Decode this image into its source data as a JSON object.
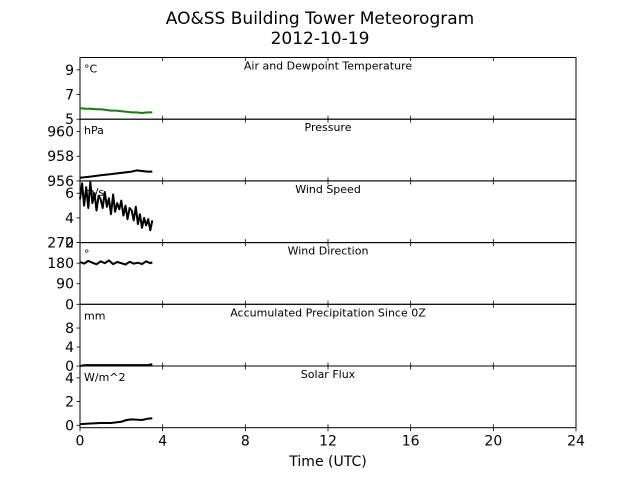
{
  "figure": {
    "title": "AO&SS Building Tower Meteorogram",
    "subtitle": "2012-10-19"
  },
  "chart_data": {
    "type": "line",
    "title": "AO&SS Building Tower Meteorogram",
    "subtitle": "2012-10-19",
    "xlabel": "Time (UTC)",
    "xlim": [
      0,
      24
    ],
    "xticks": [
      0,
      4,
      8,
      12,
      16,
      20,
      24
    ],
    "panels": [
      {
        "title": "Air and Dewpoint Temperature",
        "unit": "°C",
        "ylim": [
          5,
          10
        ],
        "yticks": [
          5,
          7,
          9
        ],
        "series": [
          {
            "color": "#1a7a0e",
            "x": [
              0,
              0.25,
              0.5,
              0.75,
              1.0,
              1.25,
              1.5,
              1.75,
              2.0,
              2.25,
              2.5,
              2.75,
              3.0,
              3.25,
              3.5
            ],
            "y": [
              5.9,
              5.85,
              5.85,
              5.8,
              5.8,
              5.75,
              5.7,
              5.7,
              5.65,
              5.6,
              5.55,
              5.55,
              5.5,
              5.55,
              5.55
            ]
          }
        ]
      },
      {
        "title": "Pressure",
        "unit": "hPa",
        "ylim": [
          956,
          961
        ],
        "yticks": [
          956,
          958,
          960
        ],
        "series": [
          {
            "color": "#000000",
            "x": [
              0,
              0.5,
              1.0,
              1.5,
              2.0,
              2.5,
              2.75,
              3.0,
              3.25,
              3.5
            ],
            "y": [
              956.25,
              956.35,
              956.45,
              956.55,
              956.65,
              956.75,
              956.85,
              956.8,
              956.75,
              956.75
            ]
          }
        ]
      },
      {
        "title": "Wind Speed",
        "unit": "m/s",
        "ylim": [
          2,
          7
        ],
        "yticks": [
          2,
          4,
          6
        ],
        "series": [
          {
            "color": "#000000",
            "x": [
              0,
              0.1,
              0.2,
              0.3,
              0.4,
              0.5,
              0.6,
              0.7,
              0.8,
              0.9,
              1.0,
              1.1,
              1.2,
              1.3,
              1.4,
              1.5,
              1.6,
              1.7,
              1.8,
              1.9,
              2.0,
              2.1,
              2.2,
              2.3,
              2.4,
              2.5,
              2.6,
              2.7,
              2.8,
              2.9,
              3.0,
              3.1,
              3.2,
              3.3,
              3.4,
              3.5
            ],
            "y": [
              5.5,
              6.8,
              5.0,
              6.5,
              4.8,
              6.9,
              5.2,
              6.0,
              4.6,
              5.8,
              5.5,
              4.8,
              6.1,
              4.9,
              5.6,
              4.3,
              5.9,
              4.5,
              5.2,
              4.7,
              5.4,
              4.2,
              5.0,
              3.9,
              4.8,
              4.6,
              3.8,
              4.9,
              3.5,
              4.3,
              3.2,
              4.0,
              3.4,
              3.9,
              3.0,
              3.8
            ]
          }
        ]
      },
      {
        "title": "Wind Direction",
        "unit": "°",
        "ylim": [
          0,
          270
        ],
        "yticks": [
          0,
          90,
          180,
          270
        ],
        "series": [
          {
            "color": "#000000",
            "x": [
              0,
              0.2,
              0.4,
              0.6,
              0.8,
              1.0,
              1.2,
              1.4,
              1.6,
              1.8,
              2.0,
              2.2,
              2.4,
              2.6,
              2.8,
              3.0,
              3.2,
              3.4,
              3.5
            ],
            "y": [
              185,
              178,
              190,
              182,
              175,
              188,
              180,
              192,
              176,
              185,
              180,
              174,
              186,
              178,
              182,
              176,
              188,
              180,
              184
            ]
          }
        ]
      },
      {
        "title": "Accumulated Precipitation Since 0Z",
        "unit": "mm",
        "ylim": [
          0,
          13
        ],
        "yticks": [
          0,
          4,
          8
        ],
        "series": [
          {
            "color": "#000000",
            "x": [
              0,
              0.25,
              3.3,
              3.5
            ],
            "y": [
              0.0,
              0.2,
              0.2,
              0.4
            ]
          }
        ]
      },
      {
        "title": "Solar Flux",
        "unit": "W/m^2",
        "ylim": [
          -0.2,
          5
        ],
        "yticks": [
          0,
          2,
          4
        ],
        "series": [
          {
            "color": "#000000",
            "x": [
              0,
              0.5,
              1.0,
              1.5,
              2.0,
              2.25,
              2.5,
              3.0,
              3.25,
              3.5
            ],
            "y": [
              0.1,
              0.15,
              0.2,
              0.2,
              0.3,
              0.45,
              0.5,
              0.45,
              0.55,
              0.6
            ]
          }
        ]
      }
    ]
  }
}
